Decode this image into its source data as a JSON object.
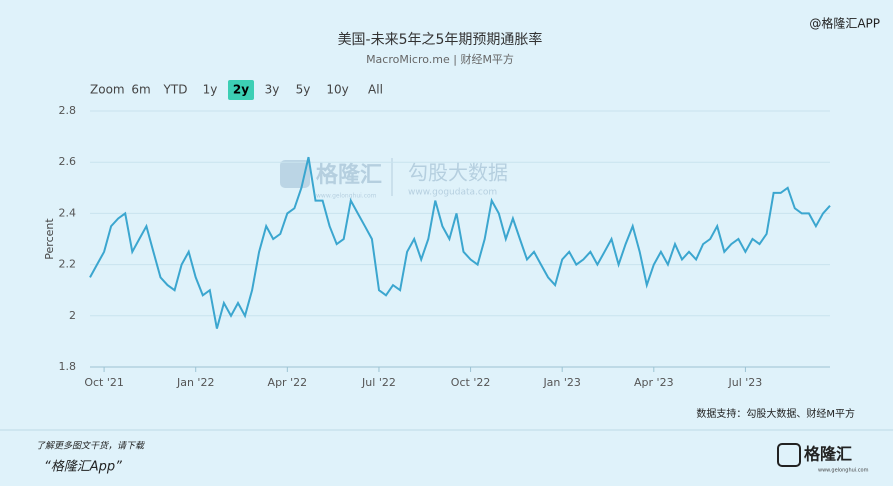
{
  "top_tag": "@格隆汇APP",
  "range_selector": {
    "label": "Zoom",
    "buttons": [
      "6m",
      "YTD",
      "1y",
      "2y",
      "3y",
      "5y",
      "10y",
      "All"
    ],
    "selected": "2y"
  },
  "watermark": {
    "brand": "格隆汇",
    "brand_url": "www.gelonghui.com",
    "name": "勾股大数据",
    "url": "www.gogudata.com"
  },
  "source": "数据支持：勾股大数据、财经M平方",
  "footer": {
    "line1": "了解更多图文干货，请下载",
    "line2": "“格隆汇App”",
    "logo": "格隆汇",
    "logo_url": "www.gelonghui.com"
  },
  "chart_data": {
    "type": "line",
    "title": "美国-未来5年之5年期预期通胀率",
    "subtitle": "MacroMicro.me | 财经M平方",
    "y_label": "Percent",
    "color": "#3ba6cf",
    "grid": true,
    "ylim": [
      1.8,
      2.8
    ],
    "yticks": [
      1.8,
      2,
      2.2,
      2.4,
      2.6,
      2.8
    ],
    "categories": [
      null,
      null,
      "Oct '21",
      null,
      null,
      null,
      null,
      null,
      null,
      null,
      null,
      null,
      null,
      null,
      null,
      "Jan '22",
      null,
      null,
      null,
      null,
      null,
      null,
      null,
      null,
      null,
      null,
      null,
      null,
      "Apr '22",
      null,
      null,
      null,
      null,
      null,
      null,
      null,
      null,
      null,
      null,
      null,
      null,
      "Jul '22",
      null,
      null,
      null,
      null,
      null,
      null,
      null,
      null,
      null,
      null,
      null,
      null,
      "Oct '22",
      null,
      null,
      null,
      null,
      null,
      null,
      null,
      null,
      null,
      null,
      null,
      null,
      "Jan '23",
      null,
      null,
      null,
      null,
      null,
      null,
      null,
      null,
      null,
      null,
      null,
      null,
      "Apr '23",
      null,
      null,
      null,
      null,
      null,
      null,
      null,
      null,
      null,
      null,
      null,
      null,
      "Jul '23",
      null,
      null,
      null,
      null,
      null,
      null,
      null,
      null,
      null,
      null,
      null,
      null
    ],
    "values": [
      2.15,
      2.2,
      2.25,
      2.35,
      2.38,
      2.4,
      2.25,
      2.3,
      2.35,
      2.25,
      2.15,
      2.12,
      2.1,
      2.2,
      2.25,
      2.15,
      2.08,
      2.1,
      1.95,
      2.05,
      2.0,
      2.05,
      2.0,
      2.1,
      2.25,
      2.35,
      2.3,
      2.32,
      2.4,
      2.42,
      2.5,
      2.62,
      2.45,
      2.45,
      2.35,
      2.28,
      2.3,
      2.45,
      2.4,
      2.35,
      2.3,
      2.1,
      2.08,
      2.12,
      2.1,
      2.25,
      2.3,
      2.22,
      2.3,
      2.45,
      2.35,
      2.3,
      2.4,
      2.25,
      2.22,
      2.2,
      2.3,
      2.45,
      2.4,
      2.3,
      2.38,
      2.3,
      2.22,
      2.25,
      2.2,
      2.15,
      2.12,
      2.22,
      2.25,
      2.2,
      2.22,
      2.25,
      2.2,
      2.25,
      2.3,
      2.2,
      2.28,
      2.35,
      2.25,
      2.12,
      2.2,
      2.25,
      2.2,
      2.28,
      2.22,
      2.25,
      2.22,
      2.28,
      2.3,
      2.35,
      2.25,
      2.28,
      2.3,
      2.25,
      2.3,
      2.28,
      2.32,
      2.48,
      2.48,
      2.5,
      2.42,
      2.4,
      2.4,
      2.35,
      2.4,
      2.43
    ]
  }
}
